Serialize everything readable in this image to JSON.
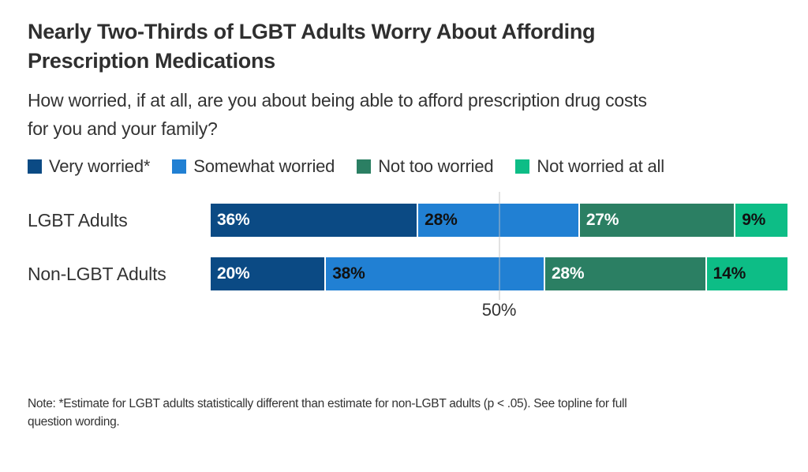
{
  "header": {
    "title_lines": [
      "Nearly Two-Thirds of LGBT Adults Worry About Affording",
      "Prescription Medications"
    ],
    "subtitle_lines": [
      "How worried, if at all, are you about being able to afford prescription drug costs",
      "for you and your family?"
    ]
  },
  "legend": {
    "items": [
      {
        "label": "Very worried*",
        "color": "#0B4A84"
      },
      {
        "label": "Somewhat worried",
        "color": "#2180D3"
      },
      {
        "label": "Not too worried",
        "color": "#2B7F63"
      },
      {
        "label": "Not worried at all",
        "color": "#0DBD86"
      }
    ]
  },
  "chart_data": {
    "type": "bar",
    "orientation": "horizontal-stacked",
    "title": "Nearly Two-Thirds of LGBT Adults Worry About Affording Prescription Medications",
    "subtitle": "How worried, if at all, are you about being able to afford prescription drug costs for you and your family?",
    "categories": [
      "LGBT Adults",
      "Non-LGBT Adults"
    ],
    "series": [
      {
        "name": "Very worried*",
        "color": "#0B4A84",
        "label_color": "white",
        "values": [
          36,
          20
        ]
      },
      {
        "name": "Somewhat worried",
        "color": "#2180D3",
        "label_color": "black",
        "values": [
          28,
          38
        ]
      },
      {
        "name": "Not too worried",
        "color": "#2B7F63",
        "label_color": "white",
        "values": [
          27,
          28
        ]
      },
      {
        "name": "Not worried at all",
        "color": "#0DBD86",
        "label_color": "black",
        "values": [
          9,
          14
        ]
      }
    ],
    "bar_labels": [
      [
        "36%",
        "28%",
        "27%",
        "9%"
      ],
      [
        "20%",
        "38%",
        "28%",
        "14%"
      ]
    ],
    "xlim": [
      0,
      100
    ],
    "gridline_x": 50,
    "axis_tick_label": "50%",
    "legend_position": "top",
    "grid": "single-vertical-gridline",
    "note": "Note: *Estimate for LGBT adults statistically different than estimate for non-LGBT adults (p < .05). See topline for full question wording."
  },
  "footnote": {
    "lines": [
      "Note: *Estimate for LGBT adults statistically different than estimate for non-LGBT adults (p < .05). See topline for full",
      "question wording."
    ]
  }
}
